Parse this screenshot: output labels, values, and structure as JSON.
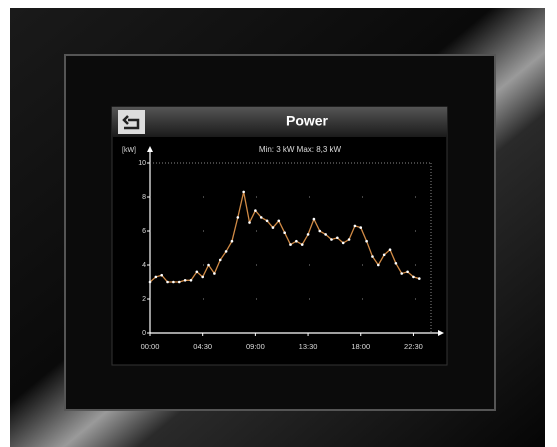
{
  "chart_data": {
    "type": "line",
    "title": "Power",
    "subtitle": "Min: 3 kW  Max: 8,3 kW",
    "y_label": "[kW]",
    "x": [
      0,
      0.5,
      1,
      1.5,
      2,
      2.5,
      3,
      3.5,
      4,
      4.5,
      5,
      5.5,
      6,
      6.5,
      7,
      7.5,
      8,
      8.5,
      9,
      9.5,
      10,
      10.5,
      11,
      11.5,
      12,
      12.5,
      13,
      13.5,
      14,
      14.5,
      15,
      15.5,
      16,
      16.5,
      17,
      17.5,
      18,
      18.5,
      19,
      19.5,
      20,
      20.5,
      21,
      21.5,
      22,
      22.5,
      23
    ],
    "values": [
      3.0,
      3.3,
      3.4,
      3.0,
      3.0,
      3.0,
      3.1,
      3.1,
      3.6,
      3.3,
      4.0,
      3.5,
      4.3,
      4.8,
      5.4,
      6.8,
      8.3,
      6.5,
      7.2,
      6.8,
      6.6,
      6.2,
      6.6,
      5.9,
      5.2,
      5.4,
      5.2,
      5.8,
      6.7,
      6.0,
      5.8,
      5.5,
      5.6,
      5.3,
      5.5,
      6.3,
      6.2,
      5.4,
      4.5,
      4.0,
      4.6,
      4.9,
      4.1,
      3.5,
      3.6,
      3.3,
      3.2
    ],
    "color": "#d08a45",
    "xlim": [
      0,
      24
    ],
    "xticks": [
      {
        "value": 0,
        "label": "00:00"
      },
      {
        "value": 4.5,
        "label": "04:30"
      },
      {
        "value": 9,
        "label": "09:00"
      },
      {
        "value": 13.5,
        "label": "13:30"
      },
      {
        "value": 18,
        "label": "18:00"
      },
      {
        "value": 22.5,
        "label": "22:30"
      }
    ],
    "ylim": [
      0,
      10
    ],
    "yticks": [
      0,
      2,
      4,
      6,
      8,
      10
    ],
    "grid": true
  }
}
